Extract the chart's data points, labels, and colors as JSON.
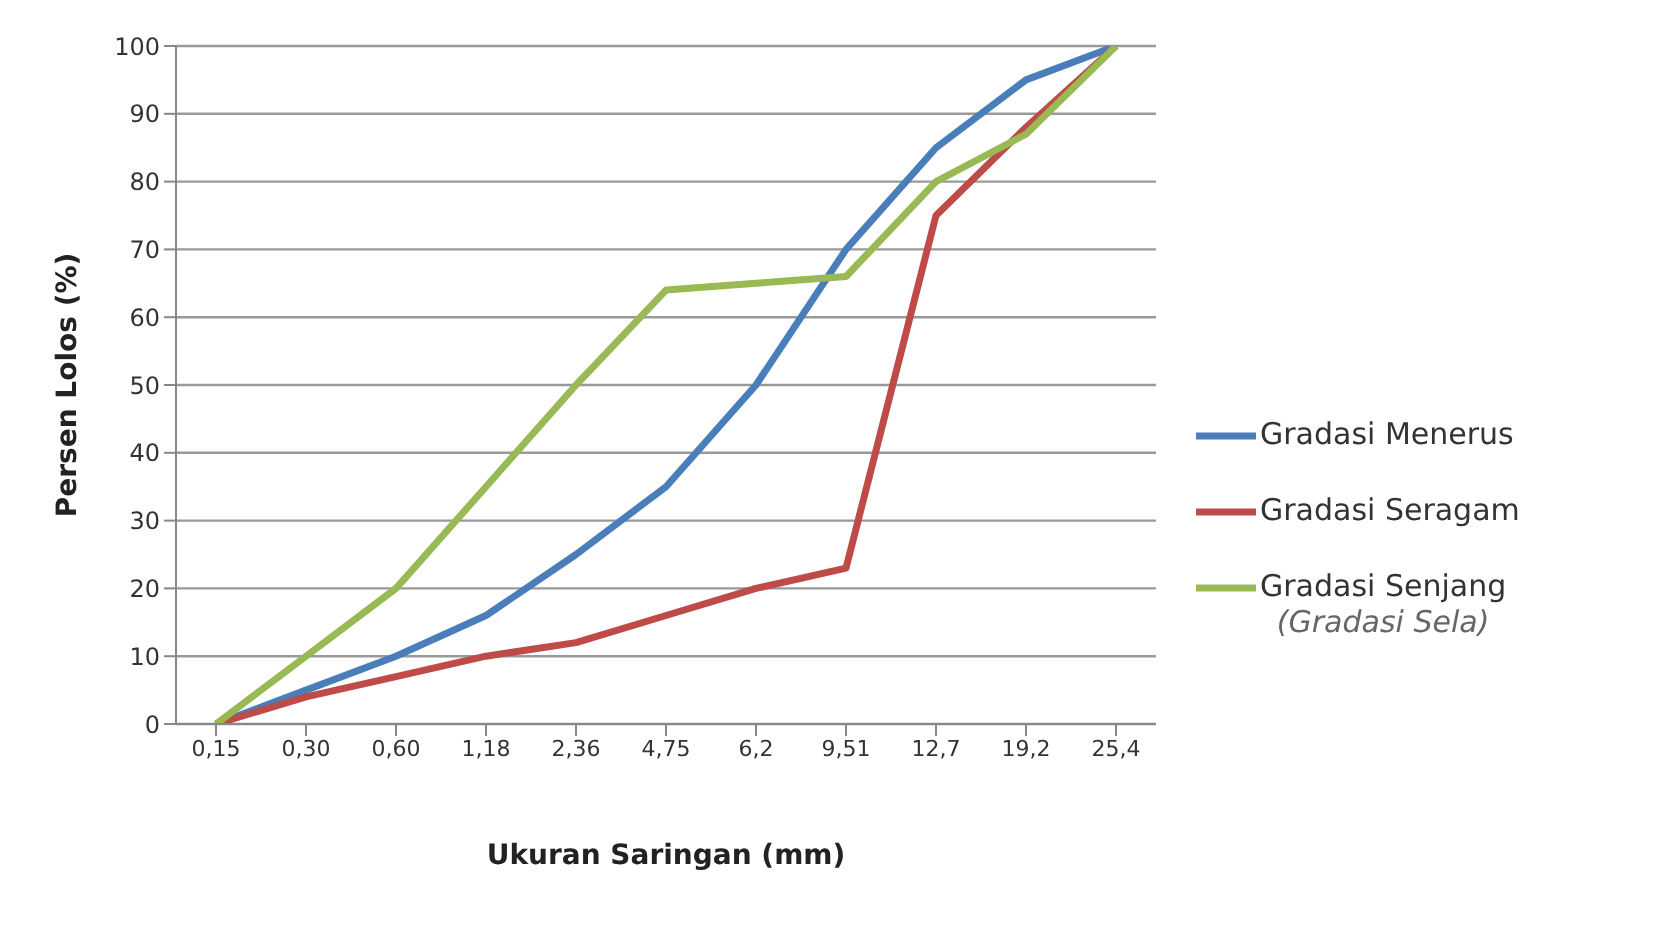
{
  "chart_data": {
    "type": "line",
    "xlabel": "Ukuran Saringan (mm)",
    "ylabel": "Persen Lolos (%)",
    "categories": [
      "0,15",
      "0,30",
      "0,60",
      "1,18",
      "2,36",
      "4,75",
      "6,2",
      "9,51",
      "12,7",
      "19,2",
      "25,4"
    ],
    "series": [
      {
        "name": "Gradasi Menerus",
        "color": "#4a7ebb",
        "values": [
          0,
          5,
          10,
          16,
          25,
          35,
          50,
          70,
          85,
          95,
          100
        ]
      },
      {
        "name": "Gradasi Seragam",
        "color": "#be4b48",
        "values": [
          0,
          4,
          7,
          10,
          12,
          16,
          20,
          23,
          75,
          88,
          100
        ]
      },
      {
        "name": "Gradasi Senjang\n(Gradasi Sela)",
        "color": "#98b954",
        "values": [
          0,
          10,
          20,
          35,
          50,
          64,
          65,
          66,
          80,
          87,
          100
        ]
      }
    ],
    "ylim": [
      0,
      100
    ],
    "yticks": [
      0,
      10,
      20,
      30,
      40,
      50,
      60,
      70,
      80,
      90,
      100
    ],
    "grid": "y",
    "legend": "right",
    "marker": "none",
    "line_style": "solid"
  }
}
